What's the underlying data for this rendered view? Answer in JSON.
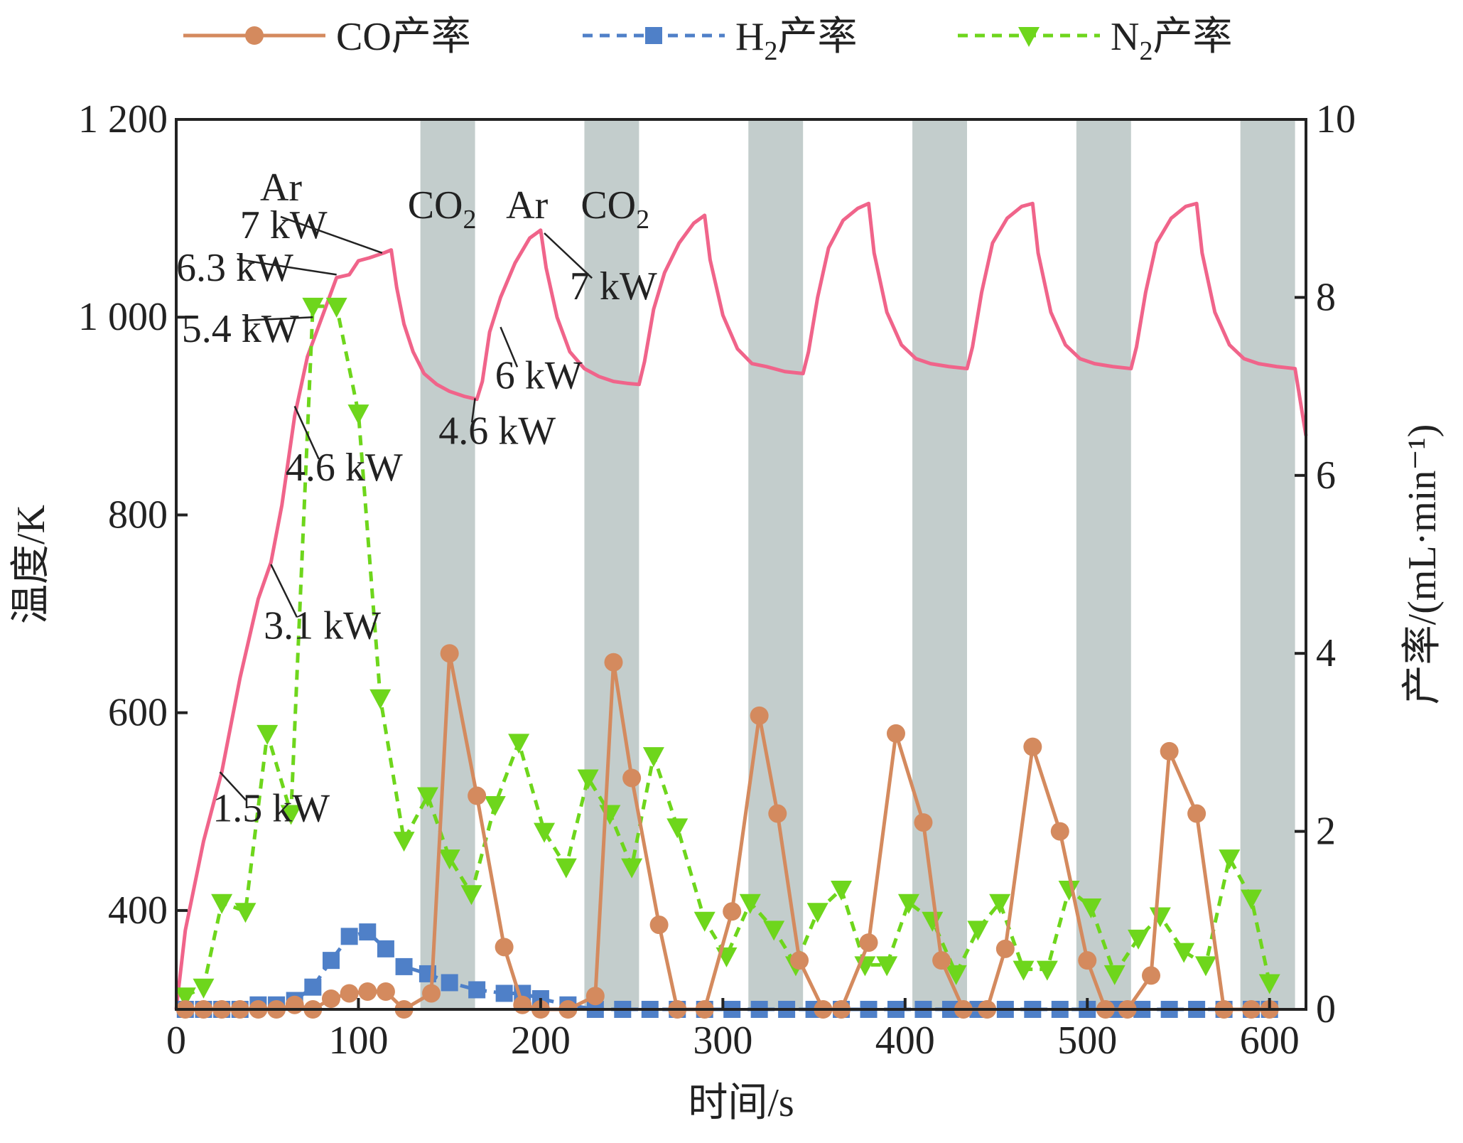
{
  "chart_data": {
    "type": "line",
    "xlabel": "时间/s",
    "ylabel_left": "温度/K",
    "ylabel_right": "产率/(mL·min⁻¹)",
    "xlim": [
      0,
      620
    ],
    "ylim_left": [
      300,
      1200
    ],
    "ylim_right": [
      0,
      10
    ],
    "x_ticks": [
      0,
      100,
      200,
      300,
      400,
      500,
      600
    ],
    "y_left_ticks": [
      400,
      600,
      800,
      1000,
      1200
    ],
    "y_left_tick_labels": [
      "400",
      "600",
      "800",
      "1 000",
      "1 200"
    ],
    "y_right_ticks": [
      0,
      2,
      4,
      6,
      8,
      10
    ],
    "grid": false,
    "legend_position": "top",
    "shaded_intervals": [
      [
        134,
        164
      ],
      [
        224,
        254
      ],
      [
        314,
        344
      ],
      [
        404,
        434
      ],
      [
        494,
        524
      ],
      [
        584,
        614
      ]
    ],
    "shade_color": "#c3cdcc",
    "temperature": {
      "color": "#f0648a",
      "x": [
        0,
        5,
        15,
        25,
        35,
        45,
        52,
        58,
        65,
        72,
        80,
        88,
        95,
        100,
        106,
        114,
        118,
        121,
        125,
        130,
        136,
        143,
        150,
        158,
        165,
        168,
        172,
        178,
        186,
        194,
        200,
        203,
        209,
        216,
        224,
        232,
        240,
        248,
        254,
        257,
        262,
        268,
        276,
        284,
        290,
        293,
        300,
        308,
        316,
        324,
        334,
        344,
        347,
        352,
        358,
        366,
        374,
        380,
        383,
        390,
        398,
        406,
        414,
        424,
        434,
        437,
        442,
        448,
        456,
        464,
        470,
        473,
        480,
        488,
        496,
        504,
        514,
        524,
        527,
        532,
        538,
        546,
        554,
        560,
        563,
        570,
        578,
        586,
        594,
        604,
        614,
        620
      ],
      "values": [
        300,
        380,
        470,
        540,
        635,
        715,
        752,
        810,
        900,
        960,
        1000,
        1040,
        1043,
        1057,
        1060,
        1065,
        1068,
        1030,
        993,
        965,
        943,
        932,
        925,
        920,
        917,
        935,
        985,
        1020,
        1055,
        1080,
        1088,
        1050,
        1000,
        965,
        948,
        940,
        935,
        933,
        932,
        955,
        1008,
        1045,
        1075,
        1095,
        1103,
        1058,
        1002,
        968,
        953,
        950,
        945,
        943,
        965,
        1020,
        1070,
        1098,
        1110,
        1115,
        1065,
        1005,
        972,
        958,
        953,
        950,
        948,
        970,
        1025,
        1075,
        1100,
        1112,
        1115,
        1065,
        1005,
        972,
        958,
        953,
        950,
        948,
        970,
        1025,
        1075,
        1100,
        1112,
        1115,
        1065,
        1005,
        972,
        958,
        953,
        950,
        948,
        880
      ]
    },
    "annotations": [
      {
        "text": "1.5 kW",
        "x": 24,
        "y": 540,
        "label_x": 20,
        "label_y": 490
      },
      {
        "text": "3.1 kW",
        "x": 52,
        "y": 750,
        "label_x": 48,
        "label_y": 675
      },
      {
        "text": "4.6 kW",
        "x": 65,
        "y": 910,
        "label_x": 60,
        "label_y": 835
      },
      {
        "text": "5.4 kW",
        "x": 75,
        "y": 1000,
        "label_x": 3,
        "label_y": 975
      },
      {
        "text": "6.3 kW",
        "x": 88,
        "y": 1043,
        "label_x": 0,
        "label_y": 1037
      },
      {
        "text": "7 kW",
        "x": 113,
        "y": 1065,
        "label_x": 35,
        "label_y": 1080
      },
      {
        "text": "4.6 kW",
        "x": 164,
        "y": 918,
        "label_x": 144,
        "label_y": 872
      },
      {
        "text": "6 kW",
        "x": 178,
        "y": 990,
        "label_x": 175,
        "label_y": 928
      },
      {
        "text": "7 kW",
        "x": 202,
        "y": 1085,
        "label_x": 216,
        "label_y": 1018
      }
    ],
    "gas_labels": [
      {
        "text": "Ar",
        "x": 46,
        "y": 1118
      },
      {
        "text": "CO",
        "sub": "2",
        "x": 127,
        "y": 1100
      },
      {
        "text": "Ar",
        "x": 181,
        "y": 1100
      },
      {
        "text": "CO",
        "sub": "2",
        "x": 222,
        "y": 1100
      }
    ],
    "series": [
      {
        "name": "CO产率",
        "sub": "",
        "name_tail": "",
        "color": "#d48a5e",
        "style": "solid",
        "marker": "circle",
        "x": [
          5,
          15,
          25,
          35,
          45,
          55,
          65,
          75,
          85,
          95,
          105,
          115,
          125,
          140,
          150,
          165,
          180,
          190,
          200,
          215,
          230,
          240,
          250,
          265,
          275,
          290,
          305,
          320,
          330,
          342,
          355,
          365,
          380,
          395,
          410,
          420,
          432,
          445,
          455,
          470,
          485,
          500,
          510,
          522,
          535,
          545,
          560,
          575,
          590,
          600
        ],
        "values": [
          0.0,
          0.0,
          0.0,
          0.0,
          0.0,
          0.0,
          0.05,
          0.0,
          0.12,
          0.18,
          0.2,
          0.2,
          0.0,
          0.18,
          4.0,
          2.4,
          0.7,
          0.05,
          0.0,
          0.0,
          0.15,
          3.9,
          2.6,
          0.95,
          0.0,
          0.0,
          1.1,
          3.3,
          2.2,
          0.55,
          0.0,
          0.0,
          0.75,
          3.1,
          2.1,
          0.55,
          0.0,
          0.0,
          0.68,
          2.95,
          2.0,
          0.55,
          0.0,
          0.0,
          0.38,
          2.9,
          2.2,
          0.0,
          0.0,
          0.0
        ]
      },
      {
        "name": "H",
        "sub": "2",
        "name_tail": "产率",
        "color": "#4f80c8",
        "style": "dashed",
        "marker": "square",
        "x": [
          5,
          15,
          25,
          35,
          45,
          55,
          65,
          75,
          85,
          95,
          105,
          115,
          125,
          138,
          150,
          165,
          180,
          190,
          200,
          215,
          230,
          245,
          260,
          275,
          290,
          305,
          320,
          335,
          350,
          365,
          380,
          395,
          410,
          425,
          440,
          455,
          470,
          485,
          500,
          515,
          530,
          545,
          560,
          575,
          590,
          600
        ],
        "values": [
          0.0,
          0.0,
          0.0,
          0.0,
          0.05,
          0.05,
          0.1,
          0.25,
          0.55,
          0.82,
          0.87,
          0.68,
          0.48,
          0.4,
          0.3,
          0.22,
          0.18,
          0.18,
          0.12,
          0.05,
          0.0,
          0.0,
          0.0,
          0.0,
          0.0,
          0.0,
          0.0,
          0.0,
          0.0,
          0.0,
          0.0,
          0.0,
          0.0,
          0.0,
          0.0,
          0.0,
          0.0,
          0.0,
          0.0,
          0.0,
          0.0,
          0.0,
          0.0,
          0.0,
          0.0,
          0.0
        ]
      },
      {
        "name": "N",
        "sub": "2",
        "name_tail": "产率",
        "color": "#6ed61c",
        "style": "dashed",
        "marker": "triangle-down",
        "x": [
          5,
          15,
          25,
          38,
          50,
          63,
          75,
          88,
          100,
          112,
          125,
          138,
          150,
          162,
          175,
          188,
          202,
          214,
          226,
          238,
          250,
          262,
          275,
          290,
          302,
          315,
          328,
          340,
          352,
          365,
          378,
          390,
          402,
          415,
          428,
          440,
          452,
          465,
          478,
          490,
          502,
          515,
          528,
          540,
          553,
          565,
          578,
          590,
          600
        ],
        "values": [
          0.15,
          0.25,
          1.2,
          1.1,
          3.1,
          2.2,
          7.9,
          7.9,
          6.7,
          3.5,
          1.9,
          2.4,
          1.7,
          1.3,
          2.3,
          3.0,
          2.0,
          1.6,
          2.6,
          2.2,
          1.6,
          2.85,
          2.05,
          1.0,
          0.6,
          1.2,
          0.9,
          0.5,
          1.1,
          1.35,
          0.5,
          0.5,
          1.2,
          1.0,
          0.4,
          0.9,
          1.2,
          0.45,
          0.45,
          1.35,
          1.15,
          0.4,
          0.8,
          1.05,
          0.65,
          0.5,
          1.7,
          1.25,
          0.3
        ]
      }
    ]
  }
}
